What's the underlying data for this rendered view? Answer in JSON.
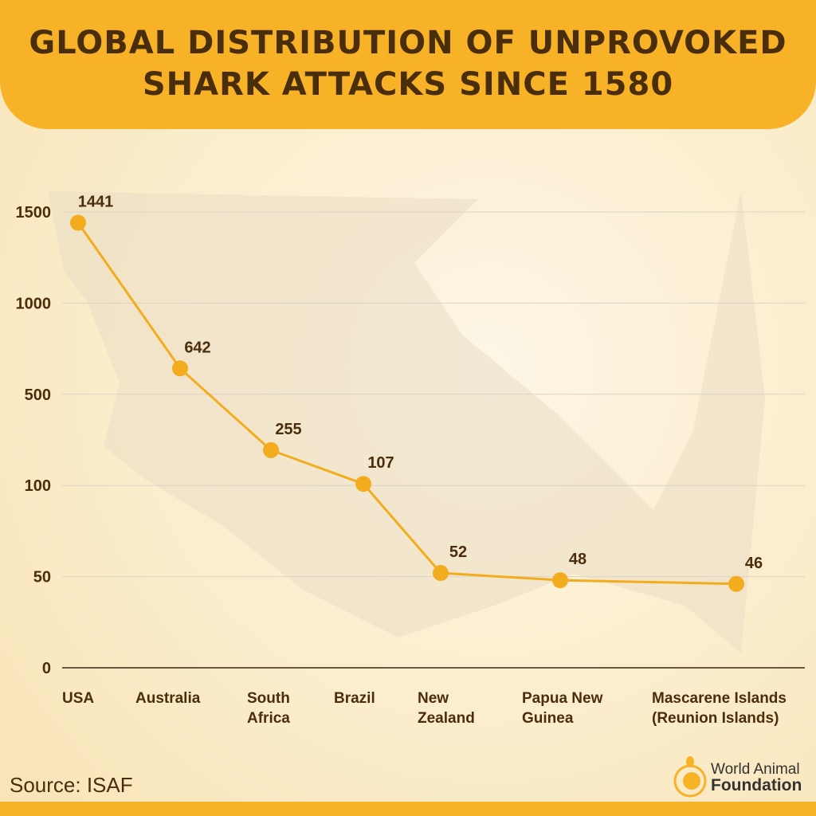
{
  "header": {
    "title_line1": "GLOBAL DISTRIBUTION OF UNPROVOKED",
    "title_line2": "SHARK ATTACKS SINCE 1580"
  },
  "source": "Source:  ISAF",
  "logo": {
    "line1": "World Animal",
    "line2": "Foundation"
  },
  "colors": {
    "accent": "#f7b227",
    "text": "#4a2e0c",
    "line": "#f2ac1e"
  },
  "chart_data": {
    "type": "line",
    "title": "GLOBAL DISTRIBUTION OF UNPROVOKED SHARK ATTACKS SINCE 1580",
    "categories": [
      "USA",
      "Australia",
      "South Africa",
      "Brazil",
      "New Zealand",
      "Papua New Guinea",
      "Mascarene Islands (Reunion Islands)"
    ],
    "category_lines": [
      [
        "USA"
      ],
      [
        "Australia"
      ],
      [
        "South",
        "Africa"
      ],
      [
        "Brazil"
      ],
      [
        "New",
        "Zealand"
      ],
      [
        "Papua New",
        "Guinea"
      ],
      [
        "Mascarene Islands",
        "(Reunion Islands)"
      ]
    ],
    "values": [
      1441,
      642,
      255,
      107,
      52,
      48,
      46
    ],
    "y_ticks": [
      0,
      50,
      100,
      500,
      1000,
      1500
    ],
    "y_scale": "non-uniform (equally spaced ticks)",
    "grid": "horizontal",
    "legend": "none"
  }
}
